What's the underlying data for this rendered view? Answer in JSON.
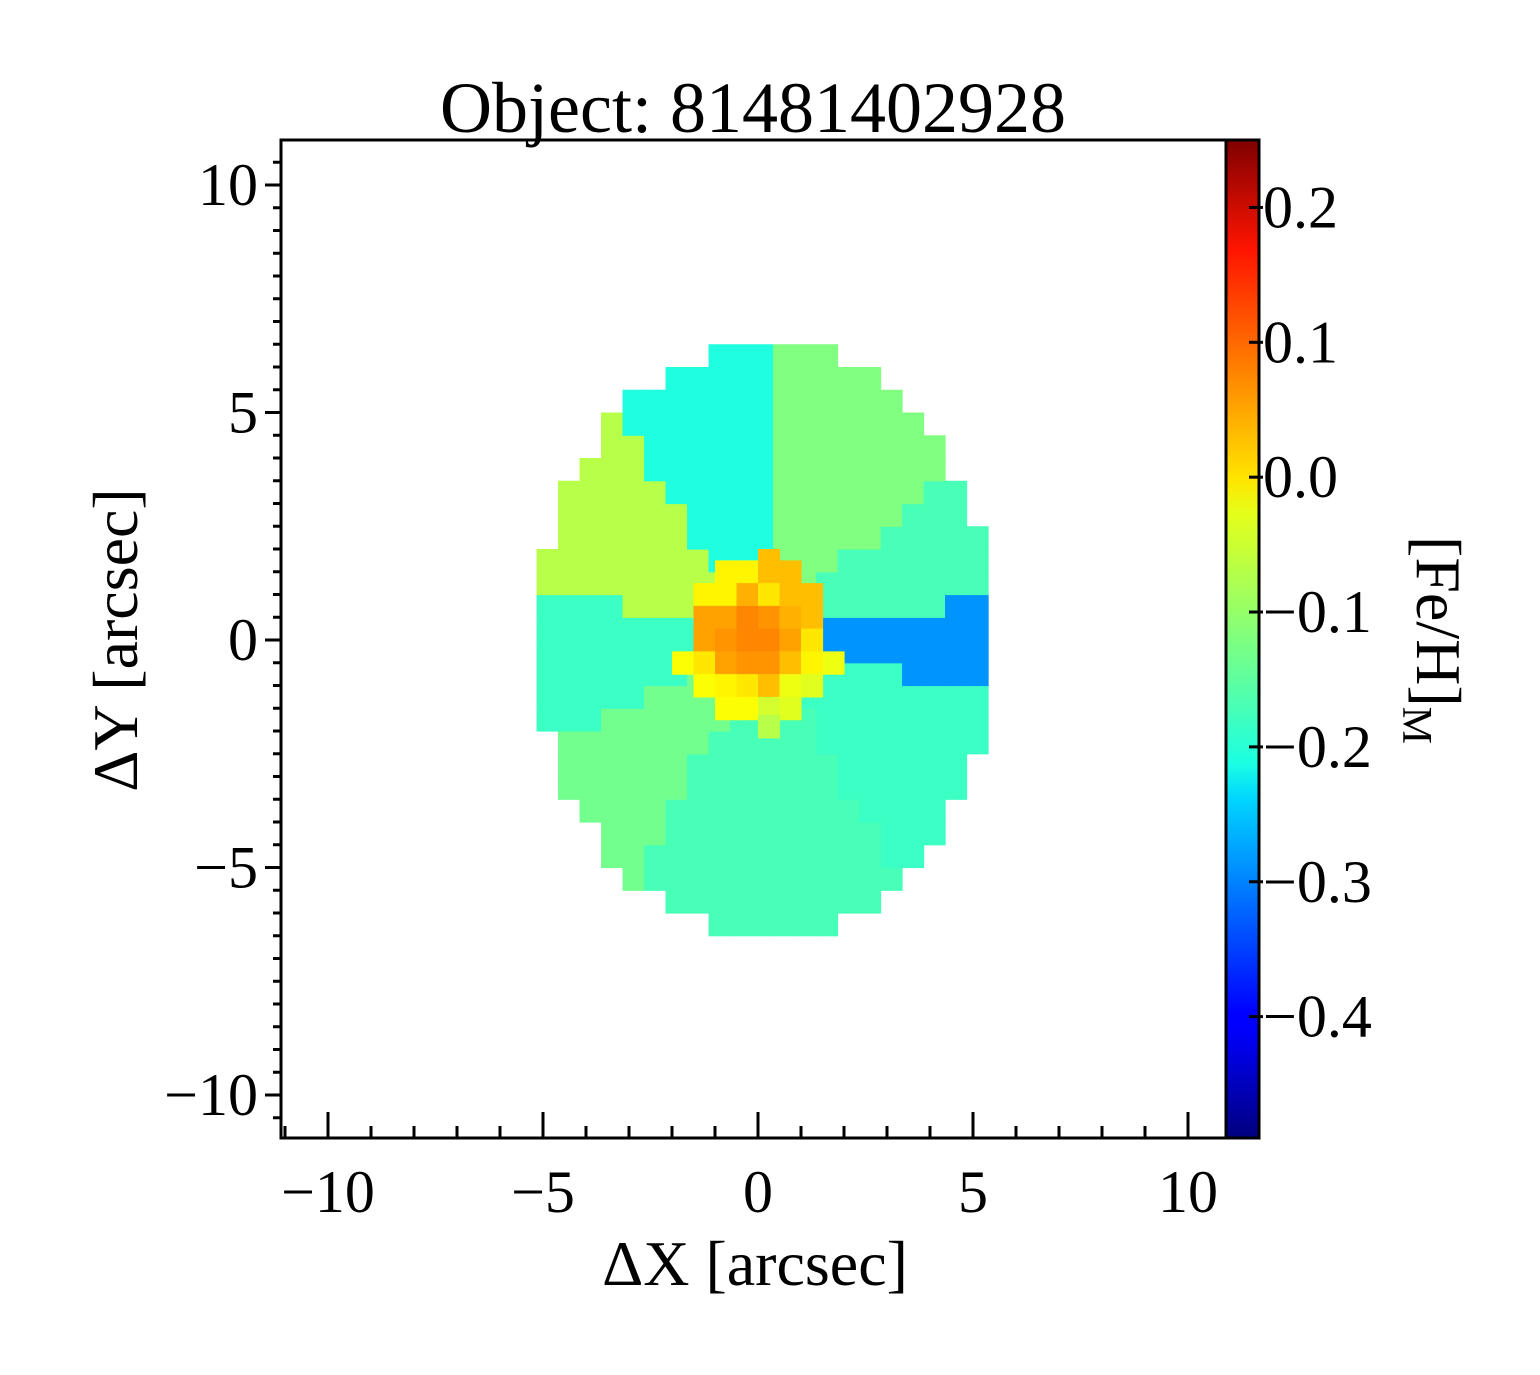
{
  "chart_data": {
    "type": "heatmap",
    "title": "Object: 81481402928",
    "xlabel": "ΔX [arcsec]",
    "ylabel": "ΔY [arcsec]",
    "colorbar_label": "[Fe/H]",
    "colorbar_label_sub": "M",
    "xlim": [
      -11.2,
      11.0
    ],
    "ylim": [
      -10.9,
      11.0
    ],
    "x_ticks": [
      -10,
      -5,
      0,
      5,
      10
    ],
    "x_tick_labels": [
      "−10",
      "−5",
      "0",
      "5",
      "10"
    ],
    "y_ticks": [
      -10,
      -5,
      0,
      5,
      10
    ],
    "y_tick_labels": [
      "−10",
      "−5",
      "0",
      "5",
      "10"
    ],
    "colormap": "jet",
    "color_range": [
      -0.49,
      0.25
    ],
    "colorbar_ticks": [
      0.2,
      0.1,
      0.0,
      -0.1,
      -0.2,
      -0.3,
      -0.4
    ],
    "colorbar_tick_labels": [
      "0.2",
      "0.1",
      "0.0",
      "−0.1",
      "−0.2",
      "−0.3",
      "−0.4"
    ],
    "grid": false,
    "ellipse": {
      "center": [
        0.15,
        0.0
      ],
      "semi_x": 5.3,
      "semi_y": 6.5
    },
    "pixel_size": 0.5,
    "default_value": -0.17,
    "sectors": [
      {
        "from_deg": -14,
        "to_deg": 10,
        "value": -0.29
      },
      {
        "from_deg": 10,
        "to_deg": 42,
        "value": -0.16
      },
      {
        "from_deg": 42,
        "to_deg": 90,
        "value": -0.12
      },
      {
        "from_deg": 90,
        "to_deg": 125,
        "value": -0.19
      },
      {
        "from_deg": 125,
        "to_deg": 168,
        "value": -0.08
      },
      {
        "from_deg": 168,
        "to_deg": 205,
        "value": -0.17
      },
      {
        "from_deg": 205,
        "to_deg": 240,
        "value": -0.13
      },
      {
        "from_deg": 240,
        "to_deg": 300,
        "value": -0.16
      },
      {
        "from_deg": 300,
        "to_deg": 346,
        "value": -0.17
      }
    ],
    "core_cells": [
      {
        "x": -0.75,
        "y": 1.5,
        "v": -0.02
      },
      {
        "x": -0.25,
        "y": 1.5,
        "v": -0.02
      },
      {
        "x": 0.25,
        "y": 1.5,
        "v": 0.02
      },
      {
        "x": 0.75,
        "y": 1.5,
        "v": 0.02
      },
      {
        "x": 0.25,
        "y": 1.75,
        "v": 0.02
      },
      {
        "x": -1.25,
        "y": 1.0,
        "v": -0.02
      },
      {
        "x": -0.75,
        "y": 1.0,
        "v": -0.02
      },
      {
        "x": -0.25,
        "y": 1.0,
        "v": 0.03
      },
      {
        "x": 0.25,
        "y": 1.0,
        "v": -0.01
      },
      {
        "x": 0.75,
        "y": 1.0,
        "v": 0.02
      },
      {
        "x": 1.25,
        "y": 1.0,
        "v": 0.02
      },
      {
        "x": -1.25,
        "y": 0.5,
        "v": 0.04
      },
      {
        "x": -0.75,
        "y": 0.5,
        "v": 0.04
      },
      {
        "x": -0.25,
        "y": 0.5,
        "v": 0.06
      },
      {
        "x": 0.25,
        "y": 0.5,
        "v": 0.05
      },
      {
        "x": 0.75,
        "y": 0.5,
        "v": 0.03
      },
      {
        "x": 1.25,
        "y": 0.5,
        "v": 0.02
      },
      {
        "x": -1.25,
        "y": 0.0,
        "v": 0.04
      },
      {
        "x": -0.75,
        "y": 0.0,
        "v": 0.05
      },
      {
        "x": -0.25,
        "y": 0.0,
        "v": 0.06
      },
      {
        "x": 0.25,
        "y": 0.0,
        "v": 0.06
      },
      {
        "x": 0.75,
        "y": 0.0,
        "v": 0.04
      },
      {
        "x": 1.25,
        "y": 0.0,
        "v": -0.01
      },
      {
        "x": -1.75,
        "y": -0.5,
        "v": -0.03
      },
      {
        "x": -1.25,
        "y": -0.5,
        "v": -0.01
      },
      {
        "x": -0.75,
        "y": -0.5,
        "v": 0.04
      },
      {
        "x": -0.25,
        "y": -0.5,
        "v": 0.05
      },
      {
        "x": 0.25,
        "y": -0.5,
        "v": 0.05
      },
      {
        "x": 0.75,
        "y": -0.5,
        "v": 0.02
      },
      {
        "x": 1.25,
        "y": -0.5,
        "v": -0.02
      },
      {
        "x": 1.75,
        "y": -0.5,
        "v": -0.04
      },
      {
        "x": -1.25,
        "y": -1.0,
        "v": -0.03
      },
      {
        "x": -0.75,
        "y": -1.0,
        "v": -0.02
      },
      {
        "x": -0.25,
        "y": -1.0,
        "v": -0.01
      },
      {
        "x": 0.25,
        "y": -1.0,
        "v": 0.02
      },
      {
        "x": 0.75,
        "y": -1.0,
        "v": -0.04
      },
      {
        "x": 1.25,
        "y": -1.0,
        "v": -0.05
      },
      {
        "x": -0.75,
        "y": -1.5,
        "v": -0.03
      },
      {
        "x": -0.25,
        "y": -1.5,
        "v": -0.03
      },
      {
        "x": 0.25,
        "y": -1.5,
        "v": -0.06
      },
      {
        "x": 0.75,
        "y": -1.5,
        "v": -0.05
      },
      {
        "x": 0.25,
        "y": -1.9,
        "v": -0.08
      }
    ]
  }
}
